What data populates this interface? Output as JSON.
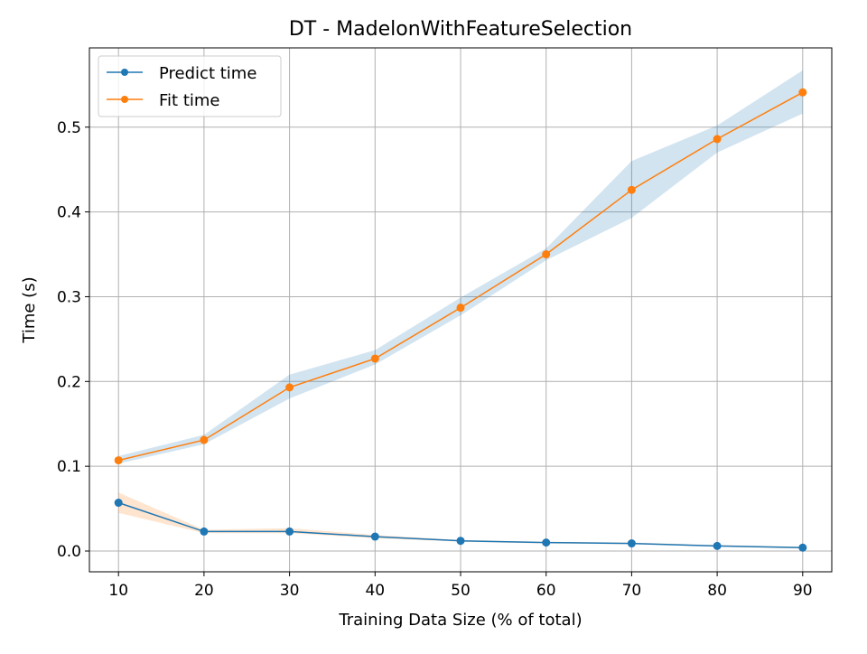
{
  "chart_data": {
    "type": "line",
    "title": "DT - MadelonWithFeatureSelection",
    "xlabel": "Training Data Size (% of total)",
    "ylabel": "Time (s)",
    "x": [
      10,
      20,
      30,
      40,
      50,
      60,
      70,
      80,
      90
    ],
    "xticks": [
      10,
      20,
      30,
      40,
      50,
      60,
      70,
      80,
      90
    ],
    "xlim": [
      6.6,
      93.4
    ],
    "yticks": [
      0.0,
      0.1,
      0.2,
      0.3,
      0.4,
      0.5
    ],
    "ytick_labels": [
      "0.0",
      "0.1",
      "0.2",
      "0.3",
      "0.4",
      "0.5"
    ],
    "ylim": [
      -0.0245,
      0.5935
    ],
    "grid": true,
    "legend_position": "upper-left",
    "series": [
      {
        "name": "Predict time",
        "color": "#1f77b4",
        "band_color": "#ff7f0e",
        "values": [
          0.057,
          0.023,
          0.023,
          0.017,
          0.012,
          0.01,
          0.009,
          0.006,
          0.004
        ],
        "lower": [
          0.045,
          0.021,
          0.021,
          0.015,
          0.011,
          0.009,
          0.008,
          0.005,
          0.003
        ],
        "upper": [
          0.069,
          0.025,
          0.027,
          0.019,
          0.013,
          0.011,
          0.01,
          0.007,
          0.005
        ]
      },
      {
        "name": "Fit time",
        "color": "#ff7f0e",
        "band_color": "#1f77b4",
        "values": [
          0.107,
          0.131,
          0.193,
          0.227,
          0.287,
          0.35,
          0.426,
          0.486,
          0.541
        ],
        "lower": [
          0.103,
          0.126,
          0.18,
          0.22,
          0.278,
          0.343,
          0.393,
          0.47,
          0.516
        ],
        "upper": [
          0.112,
          0.137,
          0.208,
          0.237,
          0.299,
          0.357,
          0.46,
          0.502,
          0.567
        ]
      }
    ]
  }
}
